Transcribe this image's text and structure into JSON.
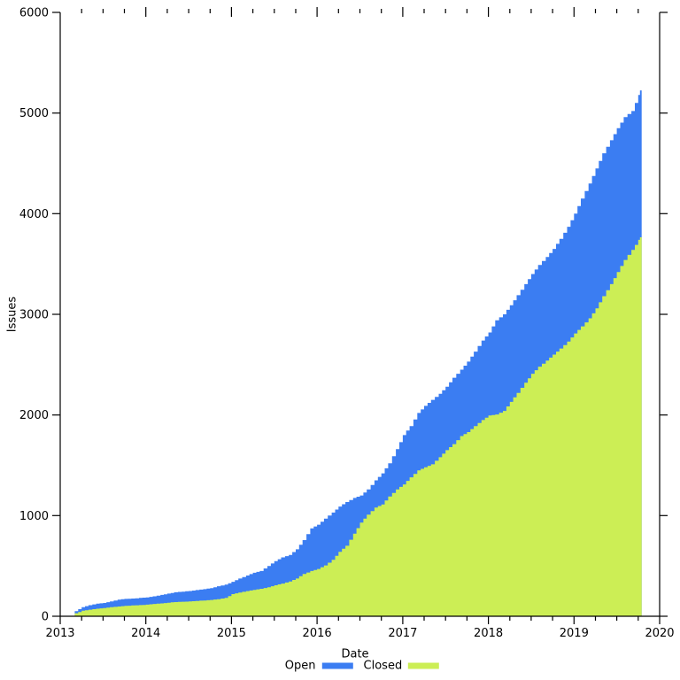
{
  "figure": {
    "background": "#ffffff",
    "axis_color": "#000000",
    "text_color": "#000000"
  },
  "chart_data": {
    "type": "area",
    "stacked": true,
    "title": "",
    "xlabel": "Date",
    "ylabel": "Issues",
    "xlim": [
      2013,
      2020
    ],
    "ylim": [
      0,
      6000
    ],
    "x_major_ticks": [
      2013,
      2014,
      2015,
      2016,
      2017,
      2018,
      2019,
      2020
    ],
    "x_minor_tick_interval": 0.25,
    "y_ticks": [
      0,
      1000,
      2000,
      3000,
      4000,
      5000,
      6000
    ],
    "grid": false,
    "legend_position": "bottom-center",
    "x": [
      2013.17,
      2013.25,
      2013.33,
      2013.42,
      2013.5,
      2013.58,
      2013.67,
      2013.75,
      2013.83,
      2013.92,
      2014.0,
      2014.08,
      2014.17,
      2014.25,
      2014.33,
      2014.42,
      2014.5,
      2014.58,
      2014.67,
      2014.75,
      2014.83,
      2014.92,
      2015.0,
      2015.08,
      2015.17,
      2015.25,
      2015.33,
      2015.42,
      2015.5,
      2015.58,
      2015.67,
      2015.75,
      2015.83,
      2015.92,
      2016.0,
      2016.08,
      2016.17,
      2016.25,
      2016.33,
      2016.42,
      2016.5,
      2016.58,
      2016.67,
      2016.75,
      2016.83,
      2016.92,
      2017.0,
      2017.08,
      2017.17,
      2017.25,
      2017.33,
      2017.42,
      2017.5,
      2017.58,
      2017.67,
      2017.75,
      2017.83,
      2017.92,
      2018.0,
      2018.08,
      2018.17,
      2018.25,
      2018.33,
      2018.42,
      2018.5,
      2018.58,
      2018.67,
      2018.75,
      2018.83,
      2018.92,
      2019.0,
      2019.08,
      2019.17,
      2019.25,
      2019.33,
      2019.42,
      2019.5,
      2019.58,
      2019.67,
      2019.75,
      2019.79
    ],
    "series": [
      {
        "name": "Open",
        "color": "#3b7df2",
        "stack_order": "top",
        "values": [
          20,
          35,
          45,
          50,
          50,
          58,
          68,
          69,
          69,
          71,
          72,
          76,
          84,
          90,
          97,
          101,
          104,
          108,
          112,
          118,
          128,
          133,
          122,
          140,
          155,
          170,
          177,
          212,
          240,
          260,
          264,
          290,
          337,
          424,
          440,
          465,
          470,
          450,
          435,
          355,
          270,
          250,
          270,
          310,
          330,
          400,
          490,
          510,
          570,
          610,
          640,
          630,
          630,
          660,
          660,
          700,
          740,
          790,
          825,
          935,
          960,
          960,
          970,
          980,
          990,
          1010,
          1030,
          1050,
          1090,
          1140,
          1190,
          1270,
          1340,
          1390,
          1420,
          1430,
          1430,
          1420,
          1380,
          1440,
          1480
        ]
      },
      {
        "name": "Closed",
        "color": "#ccee55",
        "stack_order": "bottom",
        "values": [
          30,
          55,
          65,
          75,
          82,
          90,
          97,
          103,
          107,
          111,
          115,
          122,
          128,
          135,
          141,
          144,
          147,
          152,
          157,
          162,
          170,
          182,
          220,
          235,
          250,
          262,
          273,
          288,
          308,
          325,
          346,
          375,
          420,
          450,
          470,
          505,
          560,
          640,
          700,
          820,
          930,
          1010,
          1080,
          1110,
          1190,
          1260,
          1310,
          1380,
          1450,
          1480,
          1510,
          1580,
          1650,
          1710,
          1790,
          1830,
          1890,
          1950,
          1995,
          2005,
          2040,
          2130,
          2220,
          2320,
          2410,
          2480,
          2540,
          2600,
          2660,
          2730,
          2810,
          2880,
          2960,
          3060,
          3180,
          3300,
          3420,
          3540,
          3640,
          3740,
          3790
        ]
      }
    ]
  }
}
